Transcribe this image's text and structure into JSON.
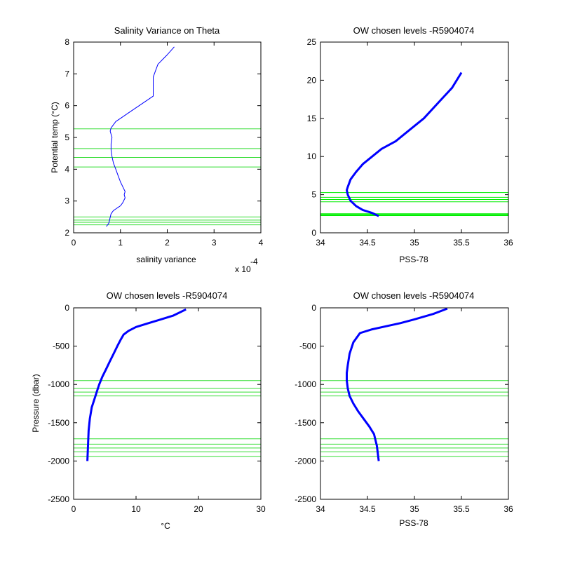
{
  "chart_data": [
    {
      "type": "line",
      "title": "Salinity Variance on Theta",
      "xlabel": "salinity variance",
      "ylabel": "Potential temp (°C)",
      "x_exponent_label": "x 10",
      "x_exponent": "-4",
      "xlim": [
        0,
        4
      ],
      "ylim": [
        2,
        8
      ],
      "xticks": [
        "0",
        "1",
        "2",
        "3",
        "4"
      ],
      "yticks": [
        "2",
        "3",
        "4",
        "5",
        "6",
        "7",
        "8"
      ],
      "grid": false,
      "series_color": "#0000ff",
      "level_color": "#33dd33",
      "x": [
        0.7,
        0.75,
        0.8,
        0.85,
        0.9,
        0.95,
        1.0,
        1.05,
        1.1,
        1.08,
        1.1,
        1.05,
        1.0,
        0.95,
        0.9,
        0.85,
        0.82,
        0.8,
        0.8,
        0.82,
        0.8,
        0.78,
        0.8,
        0.85,
        0.9,
        1.0,
        1.2,
        1.4,
        1.7,
        1.7,
        1.7,
        1.75,
        1.8,
        1.9,
        2.0,
        2.15
      ],
      "y": [
        2.2,
        2.3,
        2.6,
        2.7,
        2.75,
        2.8,
        2.85,
        2.95,
        3.1,
        3.2,
        3.3,
        3.45,
        3.6,
        3.8,
        4.0,
        4.2,
        4.4,
        4.6,
        4.8,
        5.0,
        5.1,
        5.2,
        5.3,
        5.4,
        5.5,
        5.6,
        5.8,
        6.0,
        6.3,
        6.6,
        6.9,
        7.1,
        7.3,
        7.45,
        7.6,
        7.85
      ],
      "levels": [
        2.25,
        2.33,
        2.4,
        2.5,
        4.07,
        4.37,
        4.65,
        5.27
      ]
    },
    {
      "type": "line",
      "title": "OW chosen levels -R5904074",
      "xlabel": "PSS-78",
      "ylabel": "",
      "xlim": [
        34,
        36
      ],
      "ylim": [
        0,
        25
      ],
      "xticks": [
        "34",
        "34.5",
        "35",
        "35.5",
        "36"
      ],
      "yticks": [
        "0",
        "5",
        "10",
        "15",
        "20",
        "25"
      ],
      "grid": false,
      "series_color": "#0000ff",
      "level_color": "#00ee00",
      "x": [
        34.62,
        34.55,
        34.45,
        34.38,
        34.32,
        34.29,
        34.28,
        34.29,
        34.32,
        34.38,
        34.45,
        34.55,
        34.65,
        34.8,
        34.95,
        35.1,
        35.25,
        35.4,
        35.5
      ],
      "y": [
        2.2,
        2.6,
        3.0,
        3.5,
        4.2,
        5.0,
        5.6,
        6.0,
        7.0,
        8.0,
        9.0,
        10.0,
        11.0,
        12.0,
        13.5,
        15.0,
        17.0,
        19.0,
        21.0
      ],
      "levels": [
        2.25,
        2.33,
        2.4,
        2.5,
        4.07,
        4.37,
        4.65,
        5.27
      ]
    },
    {
      "type": "line",
      "title": "OW chosen levels -R5904074",
      "xlabel": "°C",
      "ylabel": "Pressure (dbar)",
      "xlim": [
        0,
        30
      ],
      "ylim": [
        -2500,
        0
      ],
      "xticks": [
        "0",
        "10",
        "20",
        "30"
      ],
      "yticks": [
        "0",
        "-500",
        "-1000",
        "-1500",
        "-2000",
        "-2500"
      ],
      "grid": false,
      "series_color": "#0000ff",
      "level_color": "#33dd33",
      "x": [
        2.2,
        2.3,
        2.4,
        2.6,
        2.9,
        3.3,
        3.7,
        4.1,
        4.6,
        5.2,
        5.8,
        6.4,
        7.0,
        7.5,
        8.0,
        8.8,
        10.0,
        12.0,
        14.0,
        16.0,
        18.0
      ],
      "y": [
        -2000,
        -1800,
        -1600,
        -1450,
        -1300,
        -1200,
        -1100,
        -1000,
        -900,
        -800,
        -700,
        -600,
        -500,
        -420,
        -350,
        -300,
        -250,
        -200,
        -150,
        -100,
        -20
      ],
      "levels": [
        -950,
        -1050,
        -1100,
        -1150,
        -1710,
        -1780,
        -1830,
        -1880,
        -1940
      ]
    },
    {
      "type": "line",
      "title": "OW chosen levels -R5904074",
      "xlabel": "PSS-78",
      "ylabel": "",
      "xlim": [
        34,
        36
      ],
      "ylim": [
        -2500,
        0
      ],
      "xticks": [
        "34",
        "34.5",
        "35",
        "35.5",
        "36"
      ],
      "yticks": [
        "0",
        "-500",
        "-1000",
        "-1500",
        "-2000",
        "-2500"
      ],
      "grid": false,
      "series_color": "#0000ff",
      "level_color": "#33dd33",
      "x": [
        34.62,
        34.6,
        34.57,
        34.52,
        34.46,
        34.4,
        34.35,
        34.31,
        34.29,
        34.28,
        34.28,
        34.29,
        34.31,
        34.35,
        34.42,
        34.55,
        34.7,
        34.85,
        35.0,
        35.2,
        35.35
      ],
      "y": [
        -2000,
        -1800,
        -1650,
        -1550,
        -1450,
        -1350,
        -1250,
        -1150,
        -1050,
        -950,
        -850,
        -750,
        -600,
        -450,
        -330,
        -280,
        -240,
        -200,
        -150,
        -80,
        -10
      ],
      "levels": [
        -950,
        -1050,
        -1100,
        -1150,
        -1710,
        -1780,
        -1830,
        -1880,
        -1940
      ]
    }
  ]
}
